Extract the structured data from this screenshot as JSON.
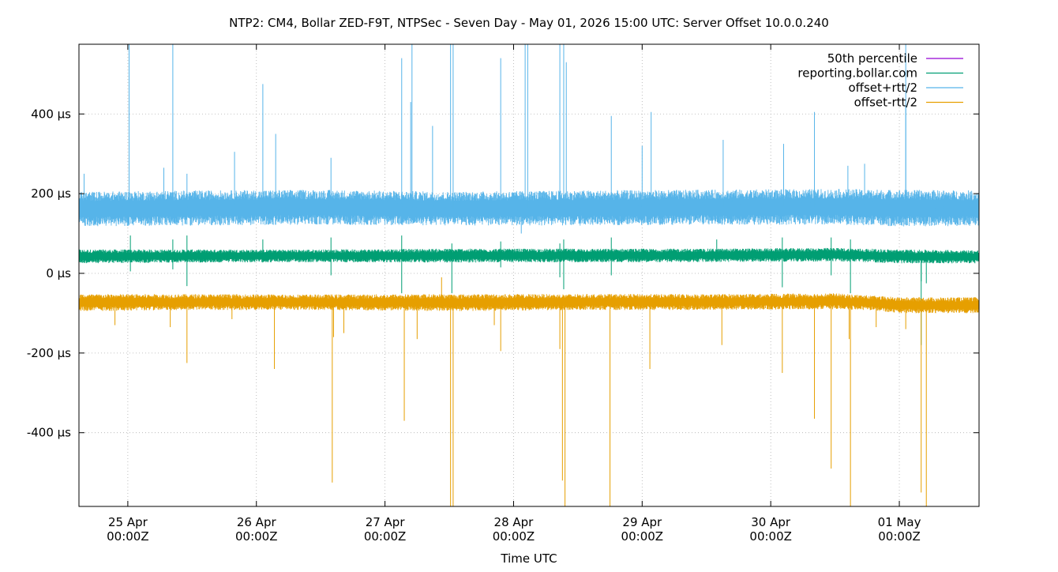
{
  "chart_data": {
    "type": "line",
    "title": "NTP2: CM4, Bollar ZED-F9T, NTPSec - Seven Day - May 01, 2026 15:00 UTC: Server Offset 10.0.0.240",
    "xlabel": "Time UTC",
    "ylabel": "",
    "x_unit": "days since 24 Apr 00:00Z",
    "xlim": [
      -0.38,
      6.62
    ],
    "ylim": [
      -585,
      575
    ],
    "y_unit": "µs",
    "grid": true,
    "legend_placement": "top-right",
    "x_ticks": [
      {
        "value": 0,
        "label_line1": "25 Apr",
        "label_line2": "00:00Z"
      },
      {
        "value": 1,
        "label_line1": "26 Apr",
        "label_line2": "00:00Z"
      },
      {
        "value": 2,
        "label_line1": "27 Apr",
        "label_line2": "00:00Z"
      },
      {
        "value": 3,
        "label_line1": "28 Apr",
        "label_line2": "00:00Z"
      },
      {
        "value": 4,
        "label_line1": "29 Apr",
        "label_line2": "00:00Z"
      },
      {
        "value": 5,
        "label_line1": "30 Apr",
        "label_line2": "00:00Z"
      },
      {
        "value": 6,
        "label_line1": "01 May",
        "label_line2": "00:00Z"
      }
    ],
    "y_ticks": [
      {
        "value": 400,
        "label": "400 µs"
      },
      {
        "value": 200,
        "label": "200 µs"
      },
      {
        "value": 0,
        "label": "0 µs"
      },
      {
        "value": -200,
        "label": "-200 µs"
      },
      {
        "value": -400,
        "label": "-400 µs"
      }
    ],
    "series": [
      {
        "name": "50th percentile",
        "color": "#9400d3",
        "band": null,
        "spikes": []
      },
      {
        "name": "reporting.bollar.com",
        "color": "#009e73",
        "band": [
          {
            "x": -0.38,
            "low": 25,
            "high": 60
          },
          {
            "x": 0.5,
            "low": 27,
            "high": 60
          },
          {
            "x": 1.5,
            "low": 28,
            "high": 60
          },
          {
            "x": 2.5,
            "low": 27,
            "high": 62
          },
          {
            "x": 3.5,
            "low": 28,
            "high": 62
          },
          {
            "x": 4.5,
            "low": 28,
            "high": 62
          },
          {
            "x": 5.5,
            "low": 30,
            "high": 64
          },
          {
            "x": 6.0,
            "low": 25,
            "high": 60
          },
          {
            "x": 6.62,
            "low": 25,
            "high": 58
          }
        ],
        "spikes": [
          {
            "x": 0.02,
            "y": 95
          },
          {
            "x": 0.02,
            "y": 5
          },
          {
            "x": 0.35,
            "y": 85
          },
          {
            "x": 0.35,
            "y": 10
          },
          {
            "x": 0.46,
            "y": 95
          },
          {
            "x": 0.46,
            "y": -32
          },
          {
            "x": 1.05,
            "y": 85
          },
          {
            "x": 1.58,
            "y": 90
          },
          {
            "x": 1.58,
            "y": -5
          },
          {
            "x": 2.13,
            "y": 95
          },
          {
            "x": 2.13,
            "y": -50
          },
          {
            "x": 2.52,
            "y": 75
          },
          {
            "x": 2.52,
            "y": -50
          },
          {
            "x": 2.9,
            "y": 80
          },
          {
            "x": 2.9,
            "y": 15
          },
          {
            "x": 3.36,
            "y": 75
          },
          {
            "x": 3.36,
            "y": -10
          },
          {
            "x": 3.39,
            "y": 85
          },
          {
            "x": 3.39,
            "y": -40
          },
          {
            "x": 3.76,
            "y": 90
          },
          {
            "x": 3.76,
            "y": -5
          },
          {
            "x": 4.58,
            "y": 85
          },
          {
            "x": 5.09,
            "y": 90
          },
          {
            "x": 5.09,
            "y": -35
          },
          {
            "x": 5.47,
            "y": 90
          },
          {
            "x": 5.47,
            "y": -5
          },
          {
            "x": 5.62,
            "y": 85
          },
          {
            "x": 5.62,
            "y": -50
          },
          {
            "x": 6.17,
            "y": -20
          },
          {
            "x": 6.17,
            "y": -180
          },
          {
            "x": 6.21,
            "y": -25
          }
        ]
      },
      {
        "name": "offset+rtt/2",
        "color": "#56b4e9",
        "band": [
          {
            "x": -0.38,
            "low": 118,
            "high": 205
          },
          {
            "x": 0.5,
            "low": 120,
            "high": 208
          },
          {
            "x": 1.5,
            "low": 122,
            "high": 210
          },
          {
            "x": 2.5,
            "low": 120,
            "high": 205
          },
          {
            "x": 3.5,
            "low": 120,
            "high": 208
          },
          {
            "x": 4.5,
            "low": 122,
            "high": 210
          },
          {
            "x": 5.5,
            "low": 122,
            "high": 212
          },
          {
            "x": 6.0,
            "low": 118,
            "high": 210
          },
          {
            "x": 6.62,
            "low": 118,
            "high": 208
          }
        ],
        "spikes": [
          {
            "x": -0.34,
            "y": 250
          },
          {
            "x": 0.01,
            "y": 575
          },
          {
            "x": 0.35,
            "y": 575
          },
          {
            "x": 0.28,
            "y": 265
          },
          {
            "x": 0.46,
            "y": 250
          },
          {
            "x": 0.83,
            "y": 305
          },
          {
            "x": 1.05,
            "y": 475
          },
          {
            "x": 1.15,
            "y": 350
          },
          {
            "x": 1.58,
            "y": 290
          },
          {
            "x": 2.13,
            "y": 540
          },
          {
            "x": 2.21,
            "y": 575
          },
          {
            "x": 2.2,
            "y": 430
          },
          {
            "x": 2.37,
            "y": 370
          },
          {
            "x": 2.51,
            "y": 575
          },
          {
            "x": 2.53,
            "y": 575
          },
          {
            "x": 2.9,
            "y": 540
          },
          {
            "x": 3.06,
            "y": 100
          },
          {
            "x": 3.09,
            "y": 575
          },
          {
            "x": 3.11,
            "y": 575
          },
          {
            "x": 3.36,
            "y": 575
          },
          {
            "x": 3.39,
            "y": 575
          },
          {
            "x": 3.41,
            "y": 530
          },
          {
            "x": 3.76,
            "y": 395
          },
          {
            "x": 4.0,
            "y": 320
          },
          {
            "x": 4.07,
            "y": 405
          },
          {
            "x": 4.63,
            "y": 335
          },
          {
            "x": 5.1,
            "y": 325
          },
          {
            "x": 5.34,
            "y": 405
          },
          {
            "x": 5.6,
            "y": 270
          },
          {
            "x": 5.73,
            "y": 275
          },
          {
            "x": 6.05,
            "y": 575
          },
          {
            "x": 6.05,
            "y": 420
          }
        ]
      },
      {
        "name": "offset-rtt/2",
        "color": "#e69f00",
        "band": [
          {
            "x": -0.38,
            "low": -95,
            "high": -52
          },
          {
            "x": 0.5,
            "low": -92,
            "high": -52
          },
          {
            "x": 1.5,
            "low": -92,
            "high": -53
          },
          {
            "x": 2.5,
            "low": -95,
            "high": -52
          },
          {
            "x": 3.5,
            "low": -92,
            "high": -52
          },
          {
            "x": 4.5,
            "low": -92,
            "high": -52
          },
          {
            "x": 5.5,
            "low": -90,
            "high": -50
          },
          {
            "x": 5.75,
            "low": -92,
            "high": -55
          },
          {
            "x": 6.0,
            "low": -100,
            "high": -60
          },
          {
            "x": 6.62,
            "low": -100,
            "high": -60
          }
        ],
        "spikes": [
          {
            "x": -0.1,
            "y": -130
          },
          {
            "x": 0.46,
            "y": -225
          },
          {
            "x": 0.33,
            "y": -135
          },
          {
            "x": 0.81,
            "y": -115
          },
          {
            "x": 1.14,
            "y": -240
          },
          {
            "x": 1.6,
            "y": -160
          },
          {
            "x": 1.59,
            "y": -525
          },
          {
            "x": 1.68,
            "y": -150
          },
          {
            "x": 2.15,
            "y": -370
          },
          {
            "x": 2.25,
            "y": -165
          },
          {
            "x": 2.44,
            "y": -10
          },
          {
            "x": 2.51,
            "y": -585
          },
          {
            "x": 2.53,
            "y": -585
          },
          {
            "x": 2.85,
            "y": -130
          },
          {
            "x": 2.9,
            "y": -195
          },
          {
            "x": 3.36,
            "y": -190
          },
          {
            "x": 3.38,
            "y": -520
          },
          {
            "x": 3.4,
            "y": -585
          },
          {
            "x": 3.75,
            "y": -585
          },
          {
            "x": 4.06,
            "y": -240
          },
          {
            "x": 4.62,
            "y": -180
          },
          {
            "x": 5.09,
            "y": -250
          },
          {
            "x": 5.34,
            "y": -365
          },
          {
            "x": 5.47,
            "y": -490
          },
          {
            "x": 5.61,
            "y": -165
          },
          {
            "x": 5.62,
            "y": -585
          },
          {
            "x": 5.82,
            "y": -135
          },
          {
            "x": 6.05,
            "y": -140
          },
          {
            "x": 6.17,
            "y": -550
          },
          {
            "x": 6.21,
            "y": -585
          }
        ]
      }
    ]
  }
}
